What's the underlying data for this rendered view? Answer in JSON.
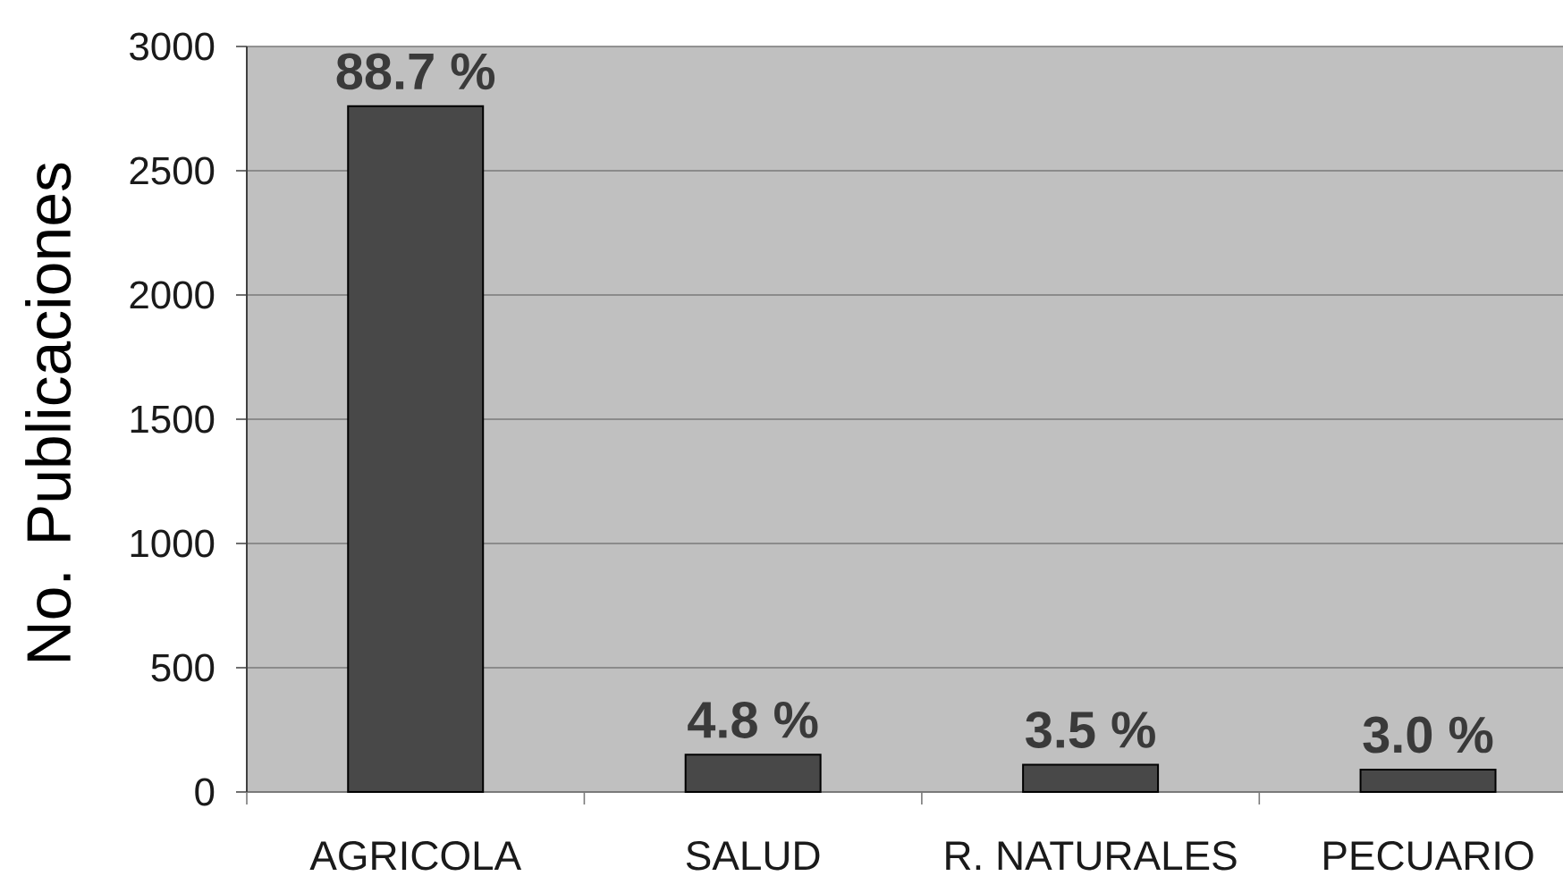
{
  "chart_data": {
    "type": "bar",
    "ylabel": "No. Publicaciones",
    "categories": [
      "AGRICOLA",
      "SALUD",
      "R. NATURALES",
      "PECUARIO"
    ],
    "values": [
      2760,
      150,
      110,
      90
    ],
    "annotations": [
      {
        "text": "88.7 %",
        "x": "AGRICOLA",
        "y": 2760
      },
      {
        "text": "4.8 %",
        "x": "SALUD",
        "y": 150
      },
      {
        "text": "3.5 %",
        "x": "R. NATURALES",
        "y": 110
      },
      {
        "text": "3.0 %",
        "x": "PECUARIO",
        "y": 90
      }
    ],
    "color": "#484848",
    "ylim": [
      0,
      3000
    ],
    "yticks": [
      0,
      500,
      1000,
      1500,
      2000,
      2500,
      3000
    ],
    "grid": "y"
  }
}
